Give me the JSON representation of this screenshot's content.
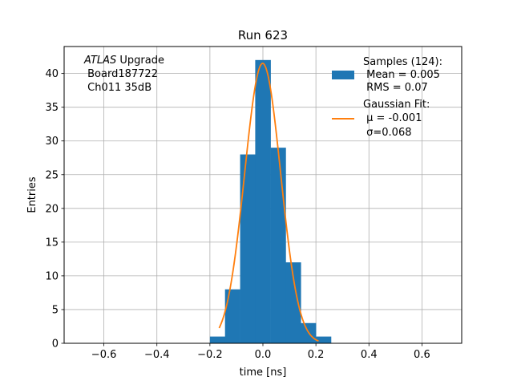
{
  "chart_data": {
    "type": "histogram",
    "title": "Run 623",
    "xlabel": "time [ns]",
    "ylabel": "Entries",
    "xlim": [
      -0.75,
      0.75
    ],
    "ylim": [
      0,
      44
    ],
    "grid": true,
    "x_ticks": [
      -0.6,
      -0.4,
      -0.2,
      0.0,
      0.2,
      0.4,
      0.6
    ],
    "x_tick_labels": [
      "−0.6",
      "−0.4",
      "−0.2",
      "0.0",
      "0.2",
      "0.4",
      "0.6"
    ],
    "y_ticks": [
      0,
      5,
      10,
      15,
      20,
      25,
      30,
      35,
      40
    ],
    "y_tick_labels": [
      "0",
      "5",
      "10",
      "15",
      "20",
      "25",
      "30",
      "35",
      "40"
    ],
    "annotation": {
      "line1_italic": "ATLAS",
      "line1_rest": " Upgrade",
      "line2": " Board187722",
      "line3": " Ch011 35dB"
    },
    "histogram": {
      "name": "Samples (124):",
      "color": "#1f77b4",
      "bin_edges": [
        -0.2,
        -0.143,
        -0.086,
        -0.029,
        0.029,
        0.086,
        0.143,
        0.2,
        0.257
      ],
      "counts": [
        1,
        8,
        28,
        42,
        29,
        12,
        3,
        1
      ],
      "mean_label": " Mean = 0.005",
      "rms_label": " RMS = 0.07"
    },
    "fit": {
      "name": "Gaussian Fit:",
      "color": "#ff7f0e",
      "mu_label": " μ = -0.001",
      "sigma_label": " σ=0.068",
      "mu": -0.001,
      "sigma": 0.068,
      "amplitude": 41.5,
      "x_range": [
        -0.165,
        0.21
      ]
    },
    "legend_position": "top-right"
  }
}
